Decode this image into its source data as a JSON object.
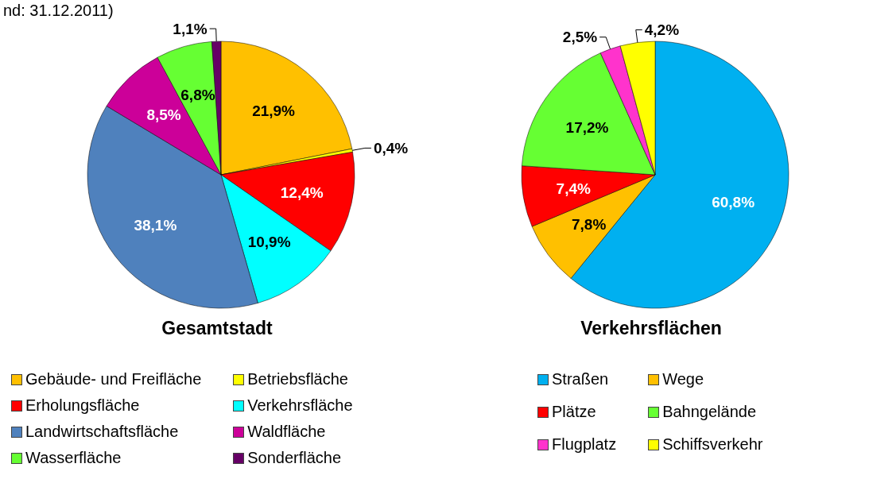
{
  "chart_data": [
    {
      "type": "pie",
      "title": "Gesamtstadt",
      "annotations": [
        "nd: 31.12.2011)"
      ],
      "legend": "bottom",
      "categories": [
        "Gebäude- und Freifläche",
        "Betriebsfläche",
        "Erholungsfläche",
        "Verkehrsfläche",
        "Landwirtschaftsfläche",
        "Waldfläche",
        "Wasserfläche",
        "Sonderfläche"
      ],
      "values": [
        21.9,
        0.4,
        12.4,
        10.9,
        38.1,
        8.5,
        6.8,
        1.1
      ],
      "value_labels": [
        "21,9%",
        "0,4%",
        "12,4%",
        "10,9%",
        "38,1%",
        "8,5%",
        "6,8%",
        "1,1%"
      ],
      "colors": [
        "#ffc000",
        "#ffff00",
        "#ff0000",
        "#00ffff",
        "#4f81bd",
        "#cc0099",
        "#66ff33",
        "#660066"
      ]
    },
    {
      "type": "pie",
      "title": "Verkehrsflächen",
      "legend": "bottom",
      "categories": [
        "Straßen",
        "Wege",
        "Plätze",
        "Bahngelände",
        "Flugplatz",
        "Schiffsverkehr"
      ],
      "values": [
        60.8,
        7.8,
        7.4,
        17.2,
        2.5,
        4.2
      ],
      "value_labels": [
        "60,8%",
        "7,8%",
        "7,4%",
        "17,2%",
        "2,5%",
        "4,2%"
      ],
      "colors": [
        "#00b0f0",
        "#ffc000",
        "#ff0000",
        "#66ff33",
        "#ff33cc",
        "#ffff00"
      ]
    }
  ]
}
